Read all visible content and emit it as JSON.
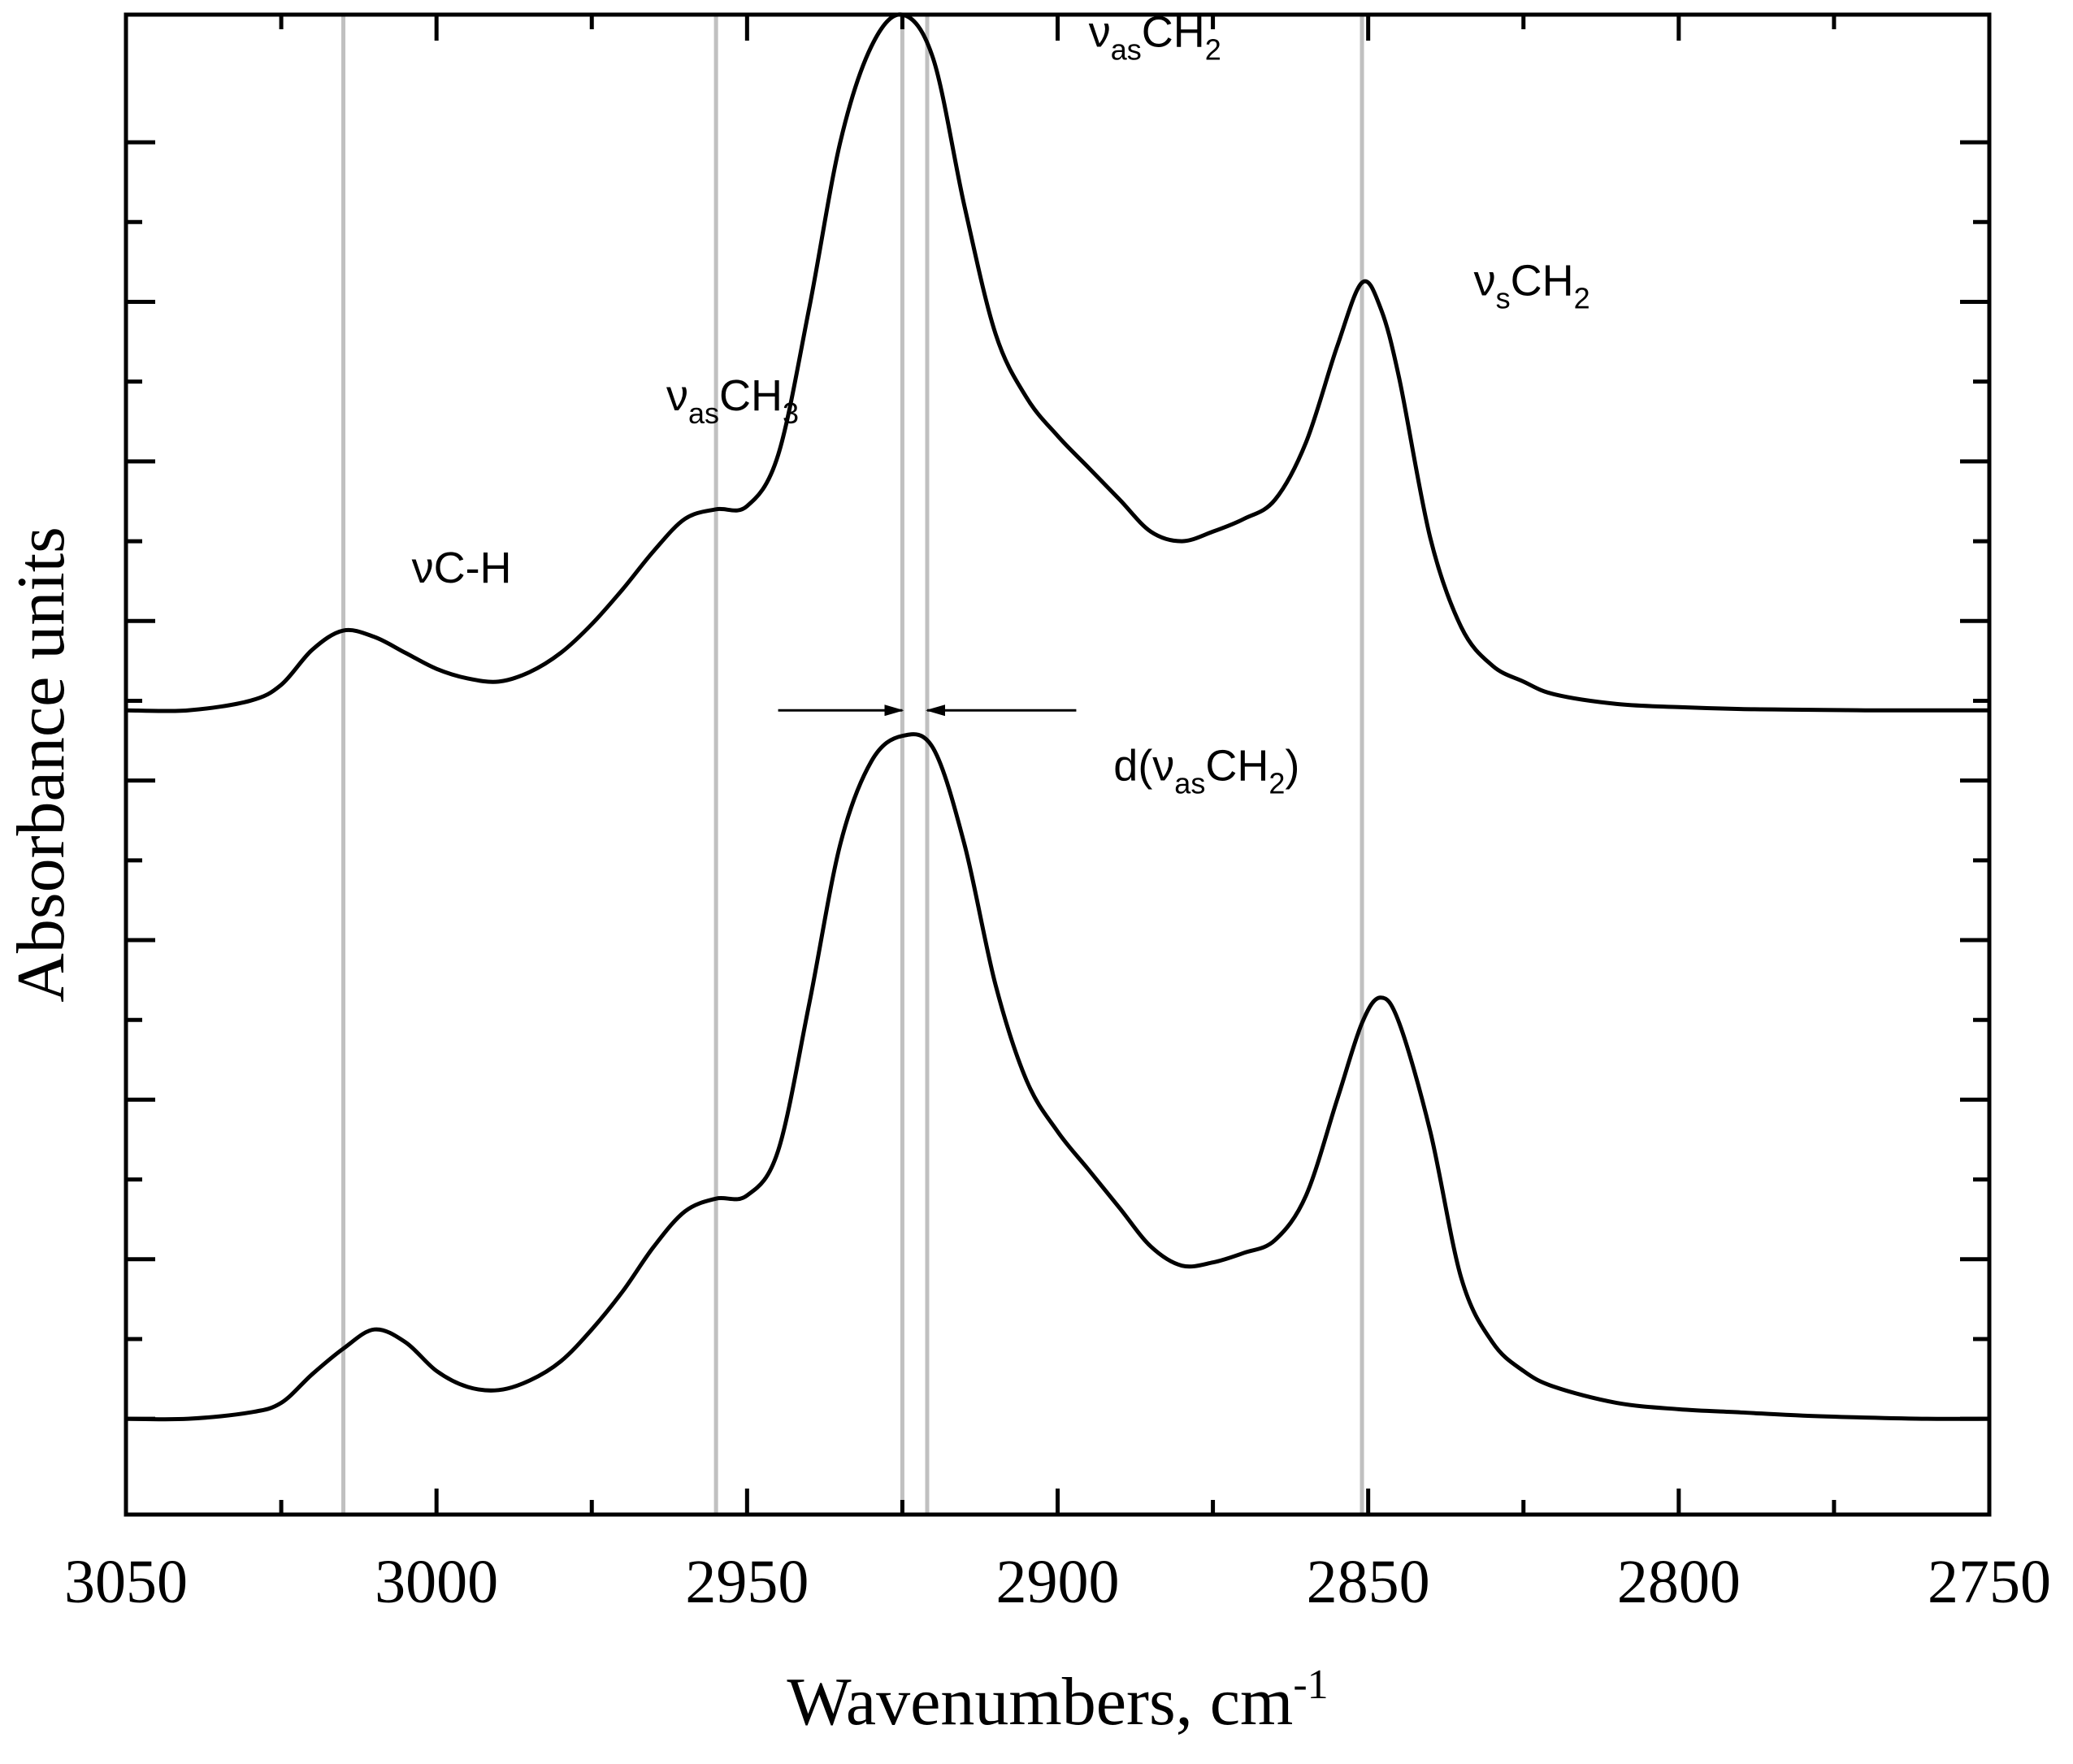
{
  "chart_data": {
    "type": "line",
    "xlabel": "Wavenumbers, cm",
    "xlabel_superscript": "-1",
    "ylabel": "Absorbance units",
    "xlim": [
      3050,
      2750
    ],
    "x_reversed": true,
    "ylim": [
      -0.15,
      2.2
    ],
    "x_ticks": [
      3050,
      3000,
      2950,
      2900,
      2850,
      2800,
      2750
    ],
    "x_tick_labels": [
      "3050",
      "3000",
      "2950",
      "2900",
      "2850",
      "2800",
      "2750"
    ],
    "x_minor_ticks": [
      3025,
      2975,
      2925,
      2875,
      2825,
      2775
    ],
    "y_ticks": [
      0,
      0.125,
      0.25,
      0.375,
      0.5,
      0.625,
      0.75,
      0.875,
      1.0,
      1.125,
      1.25,
      1.375,
      1.5,
      1.625,
      1.75,
      1.875,
      2.0
    ],
    "grid": false,
    "reference_lines": [
      3015,
      2955,
      2925,
      2921,
      2851
    ],
    "reference_line_color": "#c0c0c0",
    "line_color": "#000000",
    "series": [
      {
        "x": [
          3050,
          3040,
          3030,
          3025,
          3020,
          3015,
          3010,
          3005,
          3000,
          2995,
          2990,
          2985,
          2980,
          2975,
          2970,
          2965,
          2960,
          2955,
          2950,
          2945,
          2940,
          2935,
          2930,
          2925,
          2920,
          2915,
          2910,
          2905,
          2900,
          2895,
          2890,
          2885,
          2880,
          2875,
          2870,
          2865,
          2860,
          2855,
          2851,
          2848,
          2845,
          2840,
          2835,
          2830,
          2825,
          2820,
          2810,
          2800,
          2790,
          2780,
          2770,
          2760,
          2750
        ],
        "y": [
          1.11,
          1.11,
          1.125,
          1.15,
          1.205,
          1.235,
          1.225,
          1.2,
          1.175,
          1.16,
          1.155,
          1.17,
          1.2,
          1.245,
          1.3,
          1.36,
          1.41,
          1.425,
          1.43,
          1.51,
          1.74,
          2.0,
          2.15,
          2.2,
          2.13,
          1.9,
          1.7,
          1.6,
          1.54,
          1.49,
          1.44,
          1.39,
          1.375,
          1.39,
          1.41,
          1.44,
          1.53,
          1.68,
          1.78,
          1.74,
          1.63,
          1.38,
          1.24,
          1.18,
          1.155,
          1.135,
          1.12,
          1.115,
          1.112,
          1.111,
          1.11,
          1.11,
          1.11
        ]
      },
      {
        "x": [
          3050,
          3040,
          3030,
          3025,
          3020,
          3015,
          3010,
          3005,
          3000,
          2995,
          2990,
          2985,
          2980,
          2975,
          2970,
          2965,
          2960,
          2955,
          2950,
          2945,
          2940,
          2935,
          2930,
          2925,
          2920,
          2915,
          2910,
          2905,
          2900,
          2895,
          2890,
          2885,
          2880,
          2875,
          2870,
          2865,
          2860,
          2855,
          2851,
          2848,
          2845,
          2840,
          2835,
          2830,
          2825,
          2820,
          2810,
          2800,
          2790,
          2780,
          2770,
          2760,
          2750
        ],
        "y": [
          0.0,
          0.0,
          0.01,
          0.025,
          0.07,
          0.11,
          0.14,
          0.12,
          0.075,
          0.05,
          0.045,
          0.06,
          0.09,
          0.14,
          0.2,
          0.27,
          0.325,
          0.345,
          0.35,
          0.42,
          0.65,
          0.9,
          1.03,
          1.07,
          1.05,
          0.9,
          0.68,
          0.53,
          0.45,
          0.39,
          0.33,
          0.27,
          0.24,
          0.245,
          0.26,
          0.28,
          0.35,
          0.5,
          0.62,
          0.66,
          0.62,
          0.45,
          0.22,
          0.12,
          0.075,
          0.05,
          0.025,
          0.015,
          0.01,
          0.005,
          0.002,
          0.0,
          0.0
        ]
      }
    ],
    "annotations": [
      {
        "text": "νC-H",
        "x": 3004,
        "y": 1.31
      },
      {
        "text": "ν",
        "subscript": "as",
        "after": "CH",
        "sub2": "3",
        "x": 2963,
        "y": 1.58
      },
      {
        "text": "ν",
        "subscript": "as",
        "after": "CH",
        "sub2": "2",
        "x": 2895,
        "y": 2.15
      },
      {
        "text": "ν",
        "subscript": "s",
        "after": "CH",
        "sub2": "2",
        "x": 2833,
        "y": 1.76
      },
      {
        "text": "d(ν",
        "subscript": "as",
        "after": "CH",
        "sub2": "2",
        "tail": ")",
        "x": 2891,
        "y": 1.0
      }
    ],
    "arrows": [
      {
        "from": 2945,
        "to": 2925,
        "y": 1.11
      },
      {
        "from": 2897,
        "to": 2921,
        "y": 1.11
      }
    ]
  }
}
